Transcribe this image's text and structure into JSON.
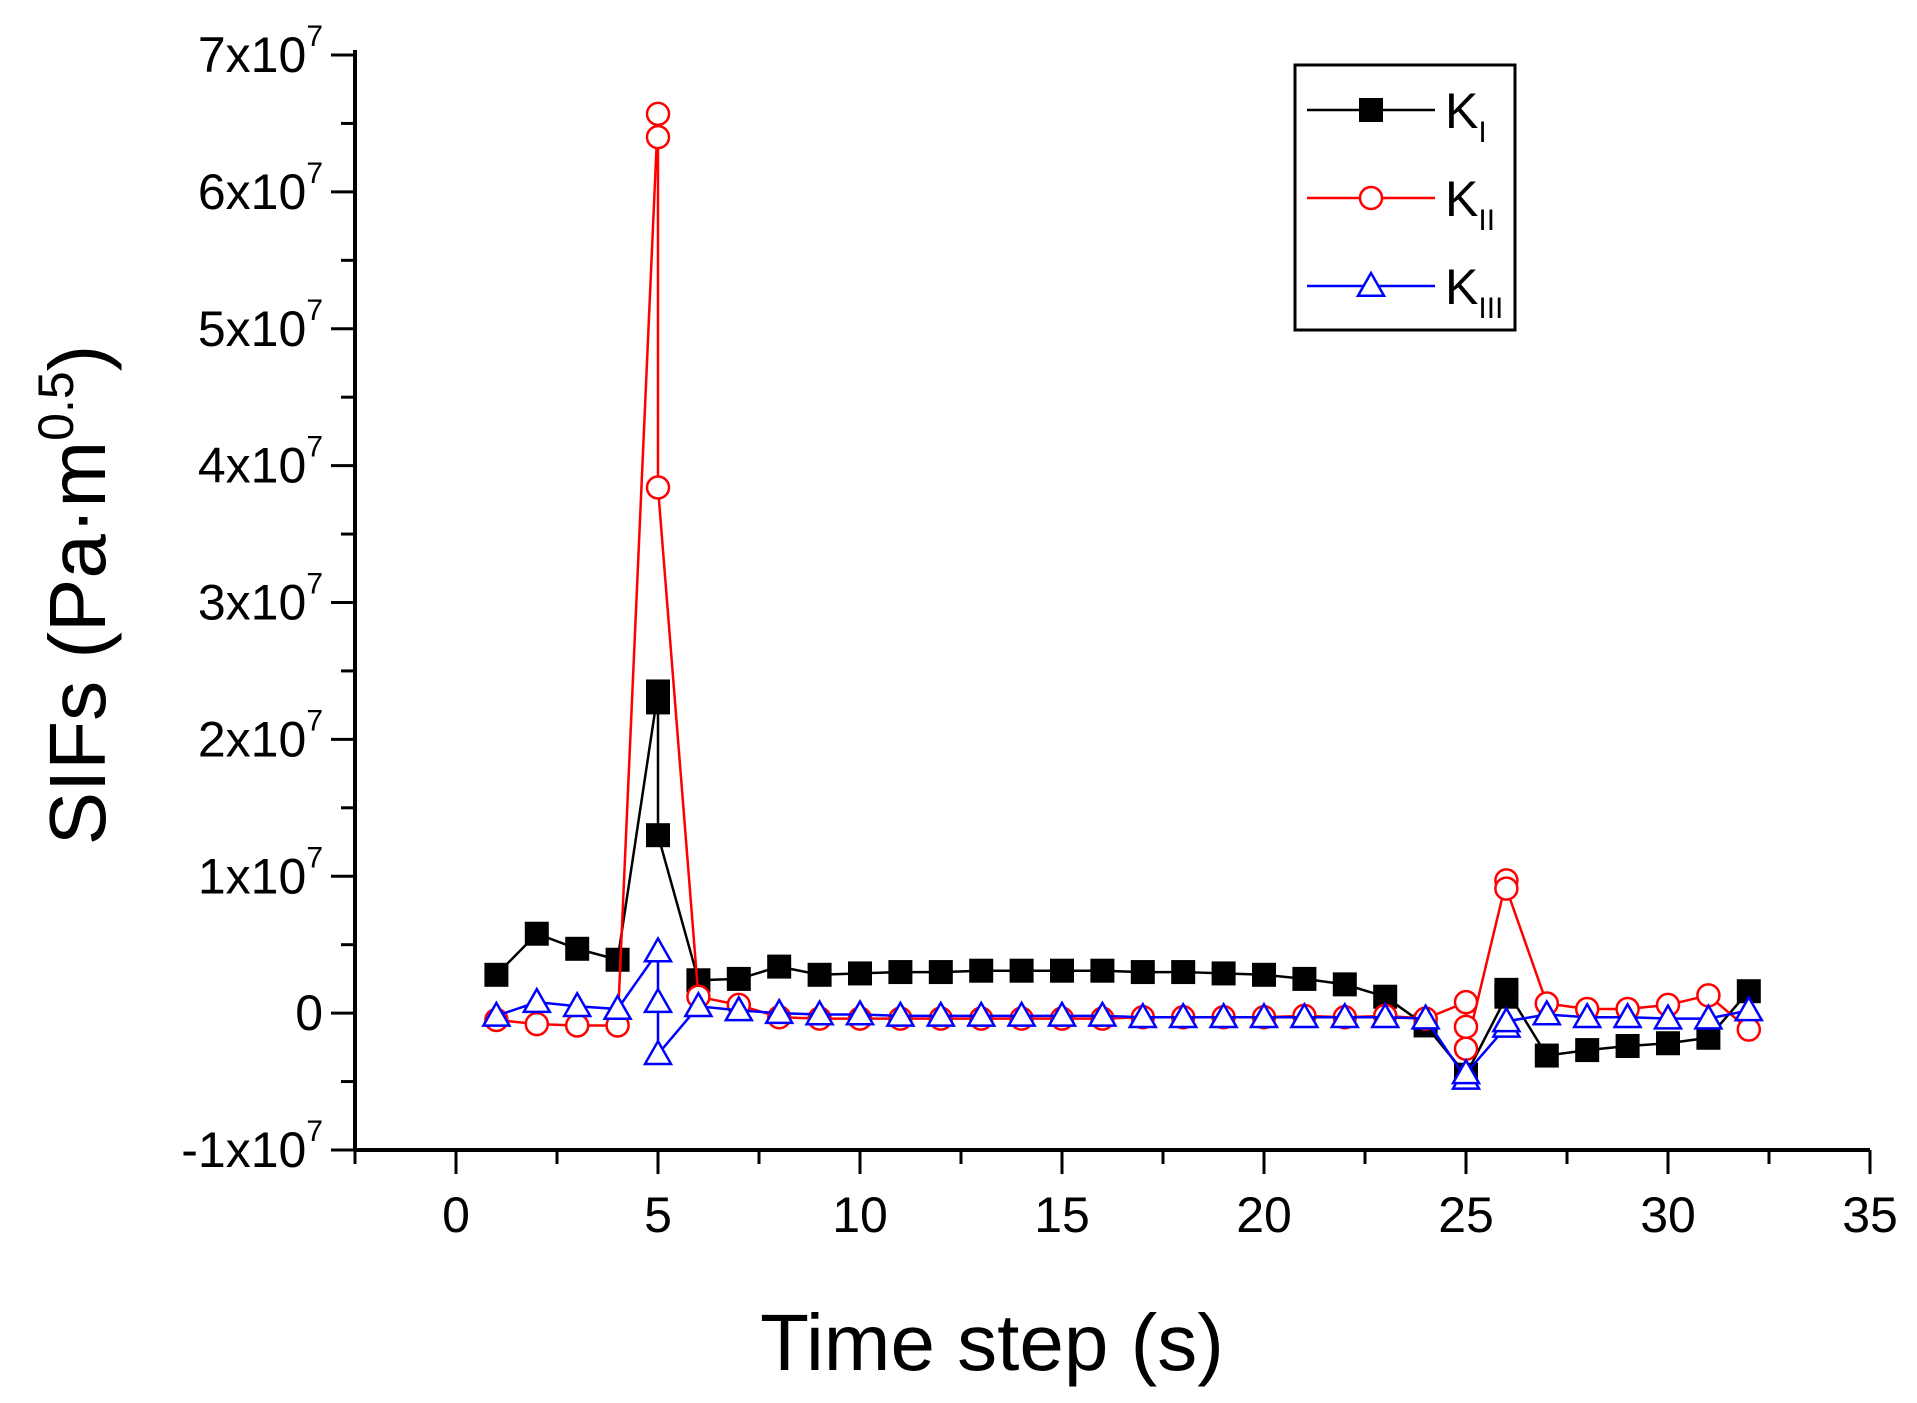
{
  "chart_data": {
    "type": "line",
    "title": "",
    "xlabel": "Time step (s)",
    "ylabel": "SIFs (Pa·m",
    "ylabel_sup": "0.5",
    "ylabel_close": ")",
    "xlim": [
      -2.5,
      35
    ],
    "ylim": [
      -10000000,
      70000000
    ],
    "x_ticks": [
      0,
      5,
      10,
      15,
      20,
      25,
      30,
      35
    ],
    "x_tick_labels": [
      "0",
      "5",
      "10",
      "15",
      "20",
      "25",
      "30",
      "35"
    ],
    "y_ticks": [
      {
        "value": -10000000,
        "base": "-1x10",
        "exp": "7"
      },
      {
        "value": 0,
        "base": "0",
        "exp": ""
      },
      {
        "value": 10000000,
        "base": "1x10",
        "exp": "7"
      },
      {
        "value": 20000000,
        "base": "2x10",
        "exp": "7"
      },
      {
        "value": 30000000,
        "base": "3x10",
        "exp": "7"
      },
      {
        "value": 40000000,
        "base": "4x10",
        "exp": "7"
      },
      {
        "value": 50000000,
        "base": "5x10",
        "exp": "7"
      },
      {
        "value": 60000000,
        "base": "6x10",
        "exp": "7"
      },
      {
        "value": 70000000,
        "base": "7x10",
        "exp": "7"
      }
    ],
    "legend_position": "top-right",
    "series": [
      {
        "name": "K",
        "sub": "I",
        "color": "#000000",
        "marker": "square-filled",
        "x": [
          1,
          2,
          3,
          4,
          5,
          5,
          5,
          6,
          7,
          8,
          9,
          10,
          11,
          12,
          13,
          14,
          15,
          16,
          17,
          18,
          19,
          20,
          21,
          22,
          23,
          24,
          25,
          26,
          26,
          27,
          28,
          29,
          30,
          31,
          32
        ],
        "y": [
          2800000,
          5800000,
          4700000,
          3900000,
          23500000,
          22700000,
          13000000,
          2400000,
          2500000,
          3400000,
          2800000,
          2900000,
          3000000,
          3000000,
          3100000,
          3100000,
          3100000,
          3100000,
          3000000,
          3000000,
          2900000,
          2800000,
          2500000,
          2100000,
          1200000,
          -900000,
          -4500000,
          1200000,
          1700000,
          -3100000,
          -2700000,
          -2400000,
          -2200000,
          -1800000,
          1600000
        ]
      },
      {
        "name": "K",
        "sub": "II",
        "color": "#ff0000",
        "marker": "circle-open",
        "x": [
          1,
          2,
          3,
          4,
          5,
          5,
          5,
          6,
          7,
          8,
          9,
          10,
          11,
          12,
          13,
          14,
          15,
          16,
          17,
          18,
          19,
          20,
          21,
          22,
          23,
          24,
          25,
          25,
          25,
          26,
          26,
          27,
          28,
          29,
          30,
          31,
          32
        ],
        "y": [
          -500000,
          -800000,
          -900000,
          -900000,
          65700000,
          64000000,
          38400000,
          1200000,
          600000,
          -300000,
          -400000,
          -400000,
          -400000,
          -400000,
          -400000,
          -400000,
          -400000,
          -400000,
          -300000,
          -300000,
          -300000,
          -300000,
          -200000,
          -300000,
          -200000,
          -400000,
          800000,
          -1000000,
          -2600000,
          9700000,
          9100000,
          700000,
          300000,
          300000,
          600000,
          1300000,
          -1200000
        ]
      },
      {
        "name": "K",
        "sub": "III",
        "color": "#0000ff",
        "marker": "triangle-open",
        "x": [
          1,
          2,
          3,
          4,
          5,
          5,
          5,
          6,
          7,
          8,
          9,
          10,
          11,
          12,
          13,
          14,
          15,
          16,
          17,
          18,
          19,
          20,
          21,
          22,
          23,
          24,
          25,
          25,
          26,
          26,
          27,
          28,
          29,
          30,
          31,
          32
        ],
        "y": [
          -200000,
          800000,
          500000,
          300000,
          4500000,
          800000,
          -3000000,
          500000,
          200000,
          0,
          -100000,
          -100000,
          -200000,
          -200000,
          -200000,
          -200000,
          -200000,
          -200000,
          -300000,
          -300000,
          -300000,
          -300000,
          -300000,
          -300000,
          -300000,
          -400000,
          -4800000,
          -4400000,
          -1000000,
          -600000,
          -100000,
          -300000,
          -300000,
          -400000,
          -400000,
          200000
        ]
      }
    ]
  }
}
